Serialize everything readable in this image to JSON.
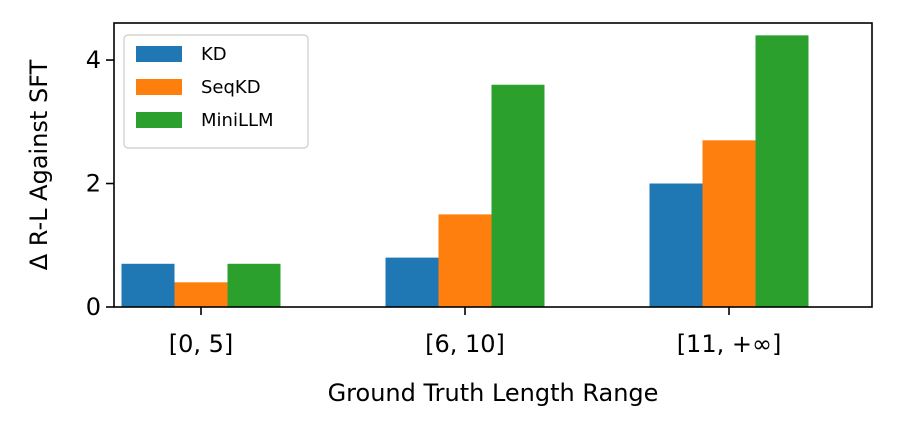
{
  "chart_data": {
    "type": "bar",
    "categories": [
      "[0, 5]",
      "[6, 10]",
      "[11, +∞]"
    ],
    "series": [
      {
        "name": "KD",
        "values": [
          0.7,
          0.8,
          2.0
        ],
        "color": "#1f77b4"
      },
      {
        "name": "SeqKD",
        "values": [
          0.4,
          1.5,
          2.7
        ],
        "color": "#ff7f0e"
      },
      {
        "name": "MiniLLM",
        "values": [
          0.7,
          3.6,
          4.4
        ],
        "color": "#2ca02c"
      }
    ],
    "xlabel": "Ground Truth Length Range",
    "ylabel": "Δ R-L Against SFT",
    "ylim": [
      0,
      4.6
    ],
    "yticks": [
      0,
      2,
      4
    ],
    "grid": false,
    "legend_position": "top-left"
  }
}
